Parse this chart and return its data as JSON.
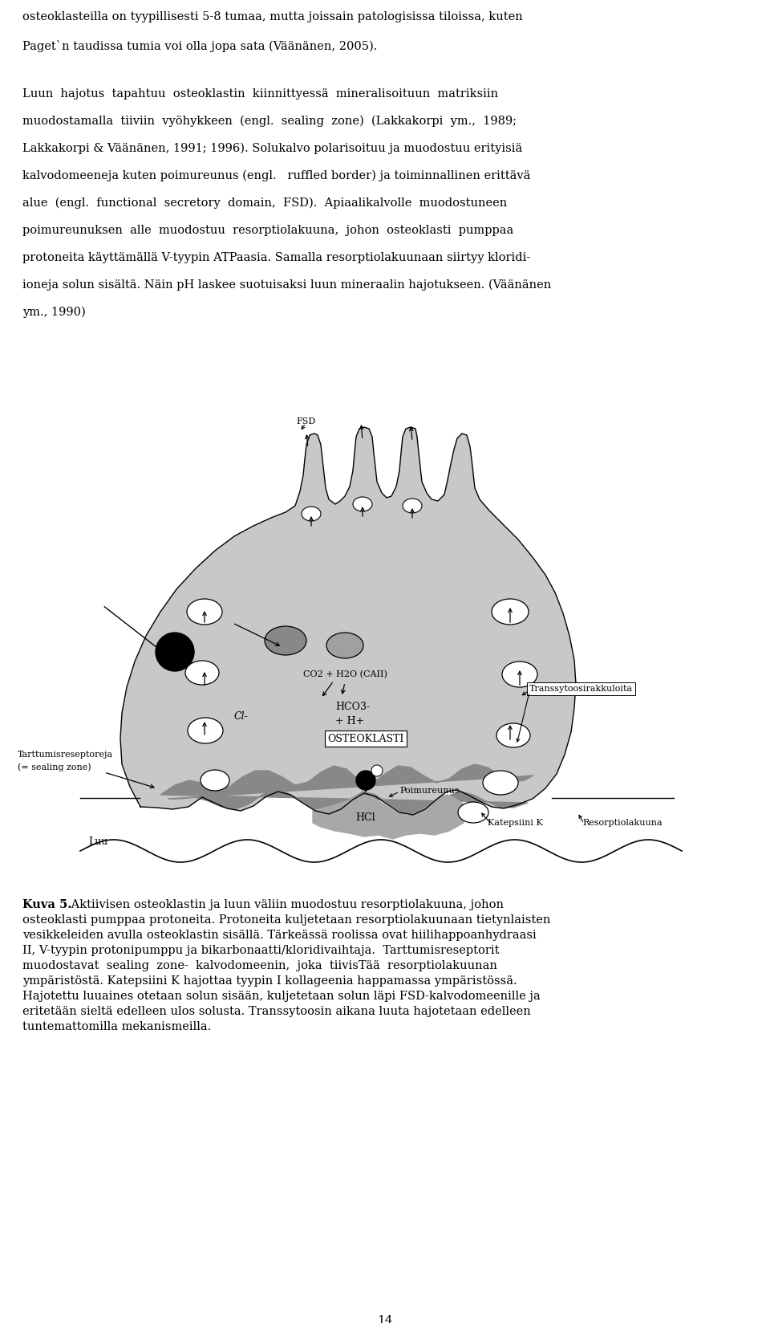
{
  "bg_color": "#ffffff",
  "p1_line1": "osteoklasteilla on tyypillisesti 5-8 tumaa, mutta joissain patologisissa tiloissa, kuten",
  "p1_line2": "Paget`n taudissa tumia voi olla jopa sata (Väänänen, 2005).",
  "p2_lines": [
    "Luun  hajotus  tapahtuu  osteoklastin  kiinnittyessä  mineralisoituun  matriksiin",
    "muodostamalla  tiiviin  vyöhykkeen  (engl.  sealing  zone)  (Lakkakorpi  ym.,  1989;",
    "Lakkakorpi & Väänänen, 1991; 1996). Solukalvo polarisoituu ja muodostuu erityisiä",
    "kalvodomeeneja kuten poimureunus (engl.   ruffled border) ja toiminnallinen erittävä",
    "alue  (engl.  functional  secretory  domain,  FSD).  Apiaalikalvolle  muodostuneen",
    "poimureunuksen  alle  muodostuu  resorptiolakuuna,  johon  osteoklasti  pumppaa",
    "protoneita käyttämällä V-tyypin ATPaasia. Samalla resorptiolakuunaan siirtyy kloridi-",
    "ioneja solun sisältä. Näin pH laskee suotuisaksi luun mineraalin hajotukseen. (Väänänen",
    "ym., 1990)"
  ],
  "caption_bold": "Kuva 5.",
  "caption_rest": " Aktiivisen osteoklastin ja luun väliin muodostuu resorptiolakuuna, johon",
  "caption_lines": [
    "osteoklasti pumppaa protoneita. Protoneita kuljetetaan resorptiolakuunaan tietynlaisten",
    "vesikkeleiden avulla osteoklastin sisällä. Tärkeässä roolissa ovat hiilihappoanhydraasi",
    "II, V-tyypin protonipumppu ja bikarbonaatti/kloridivaihtaja.  Tarttumisreseptorit",
    "muodostavat  sealing  zone-  kalvodomeenin,  joka  tiivisTää  resorptiolakuunan",
    "ympäristöstä. Katepsiini K hajottaa tyypin I kollageenia happamassa ympäristössä.",
    "Hajotettu luuaines otetaan solun sisään, kuljetetaan solun läpi FSD-kalvodomeenille ja",
    "eritetään sieltä edelleen ulos solusta. Transsytoosin aikana luuta hajotetaan edelleen",
    "tuntemattomilla mekanismeilla."
  ],
  "page_number": "14",
  "cell_gray": "#c8c8c8",
  "dark_gray": "#888888",
  "ruffled_gray": "#a8a8a8"
}
